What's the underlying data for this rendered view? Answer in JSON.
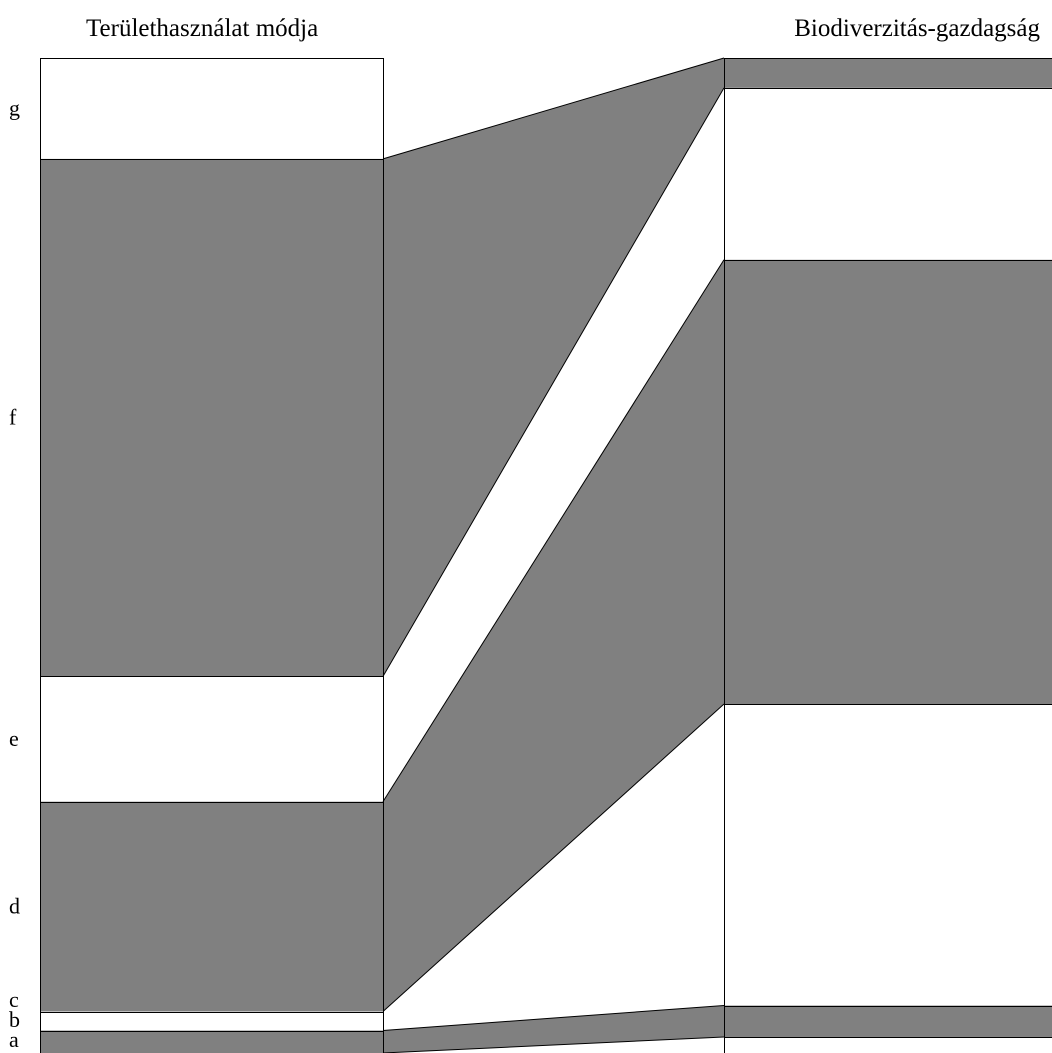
{
  "chart_data": {
    "type": "parallel-sets",
    "column_titles": [
      "Területhasználat módja",
      "Biodiverzitás-gazdagság"
    ],
    "row_labels": [
      "g",
      "f",
      "e",
      "d",
      "c",
      "b",
      "a"
    ],
    "y_range": [
      0,
      1
    ],
    "band_color": "#808080",
    "line_color": "#000000",
    "background_color": "#ffffff",
    "left_segments": [
      {
        "label": "g",
        "from": 0.8986,
        "to": 1.0,
        "shaded": false
      },
      {
        "label": "f",
        "from": 0.3785,
        "to": 0.8986,
        "shaded": true
      },
      {
        "label": "e",
        "from": 0.2526,
        "to": 0.3785,
        "shaded": false
      },
      {
        "label": "d",
        "from": 0.0417,
        "to": 0.2526,
        "shaded": true
      },
      {
        "label": "c",
        "from": 0.0226,
        "to": 0.0417,
        "shaded": false
      },
      {
        "label": "b",
        "from": 0.0,
        "to": 0.0226,
        "shaded": true
      },
      {
        "label": "a",
        "from": 0.0,
        "to": 0.0,
        "shaded": false
      }
    ],
    "right_segments": [
      {
        "from": 0.97,
        "to": 1.0,
        "shaded": true
      },
      {
        "from": 0.7972,
        "to": 0.97,
        "shaded": false
      },
      {
        "from": 0.3507,
        "to": 0.7972,
        "shaded": true
      },
      {
        "from": 0.0477,
        "to": 0.3507,
        "shaded": false
      },
      {
        "from": 0.0161,
        "to": 0.0477,
        "shaded": true
      },
      {
        "from": 0.0,
        "to": 0.0161,
        "shaded": false
      }
    ],
    "flows": [
      {
        "from_label": "f",
        "left": [
          0.3785,
          0.8986
        ],
        "right": [
          0.97,
          1.0
        ]
      },
      {
        "from_label": "d",
        "left": [
          0.0417,
          0.2526
        ],
        "right": [
          0.3507,
          0.7972
        ]
      },
      {
        "from_label": "b",
        "left": [
          0.0,
          0.0226
        ],
        "right": [
          0.0161,
          0.0477
        ]
      }
    ]
  }
}
